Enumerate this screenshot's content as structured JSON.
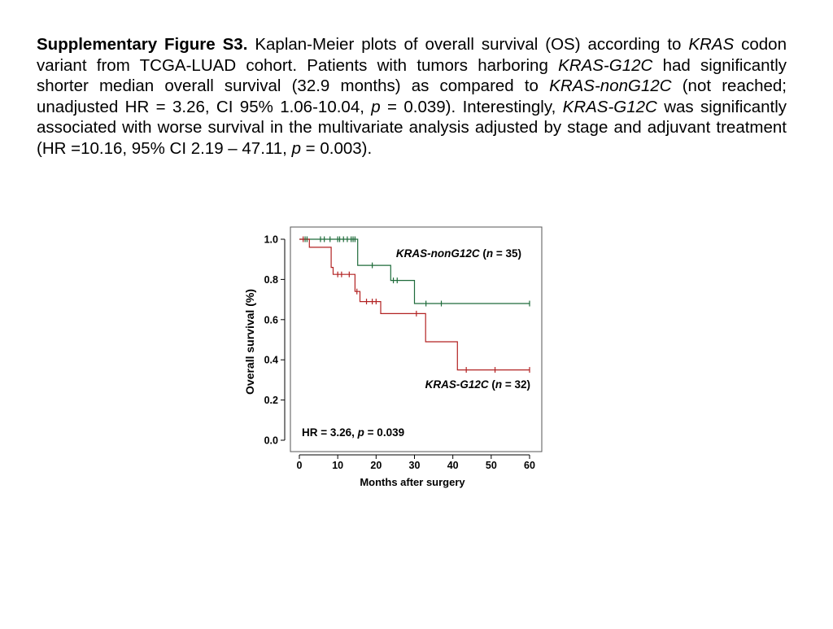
{
  "caption": {
    "figure_label": "Supplementary Figure S3.",
    "seg1": " Kaplan-Meier plots of overall survival (OS) according to ",
    "kras": "KRAS",
    "seg2": " codon variant from TCGA-LUAD cohort. Patients with tumors harboring ",
    "g12c_1": "KRAS-G12C",
    "seg3": " had significantly shorter median overall survival  (32.9 months) as compared to ",
    "nong12c": "KRAS-nonG12C",
    "seg4": " (not reached; unadjusted HR = 3.26, CI 95% 1.06-10.04, ",
    "p1": "p",
    "seg5": " = 0.039). Interestingly, ",
    "g12c_2": "KRAS-G12C",
    "seg6": " was significantly associated with worse survival in the multivariate analysis adjusted by stage and adjuvant treatment (HR =10.16, 95% CI 2.19 – 47.11, ",
    "p2": "p",
    "seg7": " = 0.003)."
  },
  "chart_data": {
    "type": "line",
    "subtype": "kaplan-meier step",
    "xlabel": "Months after surgery",
    "ylabel": "Overall survival (%)",
    "xlim": [
      0,
      60
    ],
    "ylim": [
      0,
      1
    ],
    "xticks": [
      "0",
      "10",
      "20",
      "30",
      "40",
      "50",
      "60"
    ],
    "yticks": [
      "0.0",
      "0.2",
      "0.4",
      "0.6",
      "0.8",
      "1.0"
    ],
    "grid": false,
    "series": [
      {
        "name_italic": "KRAS-nonG12C",
        "name_rest_open": " (",
        "name_n": "n",
        "name_rest_close": " = 35)",
        "color": "#1e6b3a",
        "steps": [
          [
            0,
            1.0
          ],
          [
            15.2,
            1.0
          ],
          [
            15.2,
            0.87
          ],
          [
            23.8,
            0.87
          ],
          [
            23.8,
            0.795
          ],
          [
            30,
            0.795
          ],
          [
            30,
            0.68
          ],
          [
            60,
            0.68
          ]
        ],
        "censored": [
          [
            1.5,
            1.0
          ],
          [
            2,
            1.0
          ],
          [
            5.5,
            1.0
          ],
          [
            6.5,
            1.0
          ],
          [
            8,
            1.0
          ],
          [
            10,
            1.0
          ],
          [
            10.5,
            1.0
          ],
          [
            11.5,
            1.0
          ],
          [
            12.5,
            1.0
          ],
          [
            13.5,
            1.0
          ],
          [
            14,
            1.0
          ],
          [
            14.5,
            1.0
          ],
          [
            19,
            0.87
          ],
          [
            24.5,
            0.795
          ],
          [
            25.5,
            0.795
          ],
          [
            33,
            0.68
          ],
          [
            37,
            0.68
          ],
          [
            60,
            0.68
          ]
        ]
      },
      {
        "name_italic": "KRAS-G12C",
        "name_rest_open": " (",
        "name_n": "n",
        "name_rest_close": " = 32)",
        "color": "#b22222",
        "steps": [
          [
            0,
            1.0
          ],
          [
            2.6,
            1.0
          ],
          [
            2.6,
            0.96
          ],
          [
            8.3,
            0.96
          ],
          [
            8.3,
            0.86
          ],
          [
            8.8,
            0.86
          ],
          [
            8.8,
            0.825
          ],
          [
            14.5,
            0.825
          ],
          [
            14.5,
            0.74
          ],
          [
            15.8,
            0.74
          ],
          [
            15.8,
            0.69
          ],
          [
            21.2,
            0.69
          ],
          [
            21.2,
            0.63
          ],
          [
            32.9,
            0.63
          ],
          [
            32.9,
            0.49
          ],
          [
            41.2,
            0.49
          ],
          [
            41.2,
            0.35
          ],
          [
            60,
            0.35
          ]
        ],
        "censored": [
          [
            1,
            1.0
          ],
          [
            10,
            0.825
          ],
          [
            11,
            0.825
          ],
          [
            13,
            0.825
          ],
          [
            15,
            0.74
          ],
          [
            17.5,
            0.69
          ],
          [
            19,
            0.69
          ],
          [
            20,
            0.69
          ],
          [
            30.5,
            0.63
          ],
          [
            43.5,
            0.35
          ],
          [
            51,
            0.35
          ],
          [
            60,
            0.35
          ]
        ]
      }
    ],
    "annotation": {
      "prefix": "HR = 3.26, ",
      "p": "p",
      "suffix": " = 0.039"
    }
  }
}
